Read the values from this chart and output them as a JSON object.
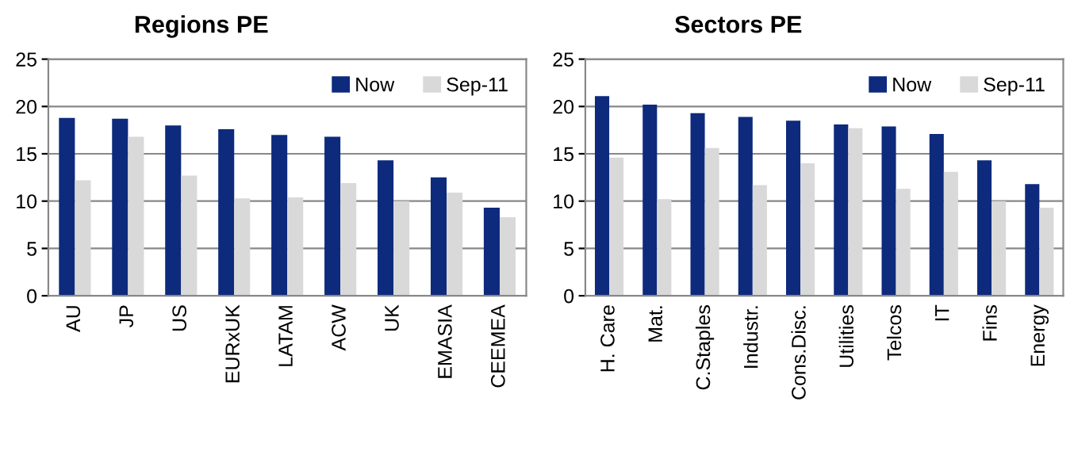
{
  "chart_data": [
    {
      "type": "bar",
      "title": "Regions PE",
      "categories": [
        "AU",
        "JP",
        "US",
        "EURxUK",
        "LATAM",
        "ACW",
        "UK",
        "EMASIA",
        "CEEMEA"
      ],
      "series": [
        {
          "name": "Now",
          "color": "#0d2a7d",
          "values": [
            18.8,
            18.7,
            18.0,
            17.6,
            17.0,
            16.8,
            14.3,
            12.5,
            9.3
          ]
        },
        {
          "name": "Sep-11",
          "color": "#d9d9d9",
          "values": [
            12.2,
            16.8,
            12.7,
            10.3,
            10.4,
            11.9,
            10.0,
            10.9,
            8.3
          ]
        }
      ],
      "ylim": [
        0,
        25
      ],
      "yticks": [
        0,
        5,
        10,
        15,
        20,
        25
      ],
      "grid": "y",
      "legend": "top right"
    },
    {
      "type": "bar",
      "title": "Sectors PE",
      "categories": [
        "H. Care",
        "Mat.",
        "C.Staples",
        "Industr.",
        "Cons.Disc.",
        "Utilities",
        "Telcos",
        "IT",
        "Fins",
        "Energy"
      ],
      "series": [
        {
          "name": "Now",
          "color": "#0d2a7d",
          "values": [
            21.1,
            20.2,
            19.3,
            18.9,
            18.5,
            18.1,
            17.9,
            17.1,
            14.3,
            11.8
          ]
        },
        {
          "name": "Sep-11",
          "color": "#d9d9d9",
          "values": [
            14.6,
            10.2,
            15.6,
            11.7,
            14.0,
            17.7,
            11.3,
            13.1,
            10.0,
            9.3
          ]
        }
      ],
      "ylim": [
        0,
        25
      ],
      "yticks": [
        0,
        5,
        10,
        15,
        20,
        25
      ],
      "grid": "y",
      "legend": "top right"
    }
  ]
}
